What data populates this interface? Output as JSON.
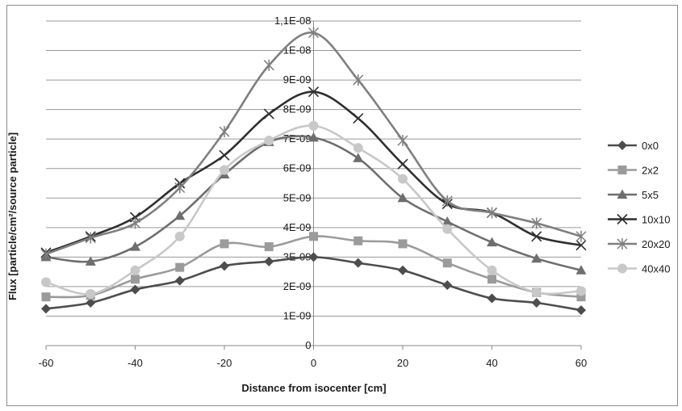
{
  "chart_data": {
    "type": "line",
    "title": "",
    "xlabel": "Distance from isocenter [cm]",
    "ylabel": "Flux [particle/cm²/source particle]",
    "xlim": [
      -60,
      60
    ],
    "ylim": [
      0,
      1.1e-08
    ],
    "x_ticks": [
      -60,
      -40,
      -20,
      0,
      20,
      40,
      60
    ],
    "x_tick_labels": [
      "-60",
      "-40",
      "-20",
      "0",
      "20",
      "40",
      "60"
    ],
    "y_ticks": [
      0,
      1e-09,
      2e-09,
      3e-09,
      4e-09,
      5e-09,
      6e-09,
      7e-09,
      8e-09,
      9e-09,
      1e-08,
      1.1e-08
    ],
    "y_tick_labels": [
      "0",
      "1E-09",
      "2E-09",
      "3E-09",
      "4E-09",
      "5E-09",
      "6E-09",
      "7E-09",
      "8E-09",
      "9E-09",
      "1E-08",
      "1,1E-08"
    ],
    "grid": "horizontal",
    "legend_position": "right",
    "x": [
      -60,
      -50,
      -40,
      -30,
      -20,
      -10,
      0,
      10,
      20,
      30,
      40,
      50,
      60
    ],
    "series": [
      {
        "name": "0x0",
        "marker": "diamond",
        "color": "#4d4d4d",
        "values": [
          1.25e-09,
          1.45e-09,
          1.9e-09,
          2.2e-09,
          2.7e-09,
          2.85e-09,
          3e-09,
          2.8e-09,
          2.55e-09,
          2.05e-09,
          1.6e-09,
          1.45e-09,
          1.2e-09
        ]
      },
      {
        "name": "2x2",
        "marker": "square",
        "color": "#9b9b9b",
        "values": [
          1.65e-09,
          1.7e-09,
          2.25e-09,
          2.65e-09,
          3.45e-09,
          3.35e-09,
          3.7e-09,
          3.55e-09,
          3.45e-09,
          2.8e-09,
          2.25e-09,
          1.8e-09,
          1.65e-09
        ]
      },
      {
        "name": "5x5",
        "marker": "triangle",
        "color": "#6e6e6e",
        "values": [
          3e-09,
          2.85e-09,
          3.35e-09,
          4.4e-09,
          5.8e-09,
          6.9e-09,
          7.05e-09,
          6.35e-09,
          5e-09,
          4.2e-09,
          3.5e-09,
          2.95e-09,
          2.55e-09
        ]
      },
      {
        "name": "10x10",
        "marker": "x",
        "color": "#2f2f2f",
        "values": [
          3.15e-09,
          3.7e-09,
          4.35e-09,
          5.5e-09,
          6.45e-09,
          7.85e-09,
          8.6e-09,
          7.7e-09,
          6.15e-09,
          4.8e-09,
          4.5e-09,
          3.7e-09,
          3.4e-09
        ]
      },
      {
        "name": "20x20",
        "marker": "star",
        "color": "#7f7f7f",
        "values": [
          3.1e-09,
          3.65e-09,
          4.15e-09,
          5.35e-09,
          7.25e-09,
          9.5e-09,
          1.06e-08,
          9e-09,
          6.95e-09,
          4.9e-09,
          4.5e-09,
          4.15e-09,
          3.7e-09
        ]
      },
      {
        "name": "40x40",
        "marker": "circle",
        "color": "#c8c8c8",
        "values": [
          2.15e-09,
          1.75e-09,
          2.55e-09,
          3.7e-09,
          5.95e-09,
          6.95e-09,
          7.45e-09,
          6.7e-09,
          5.65e-09,
          3.95e-09,
          2.55e-09,
          1.8e-09,
          1.85e-09
        ]
      }
    ]
  }
}
